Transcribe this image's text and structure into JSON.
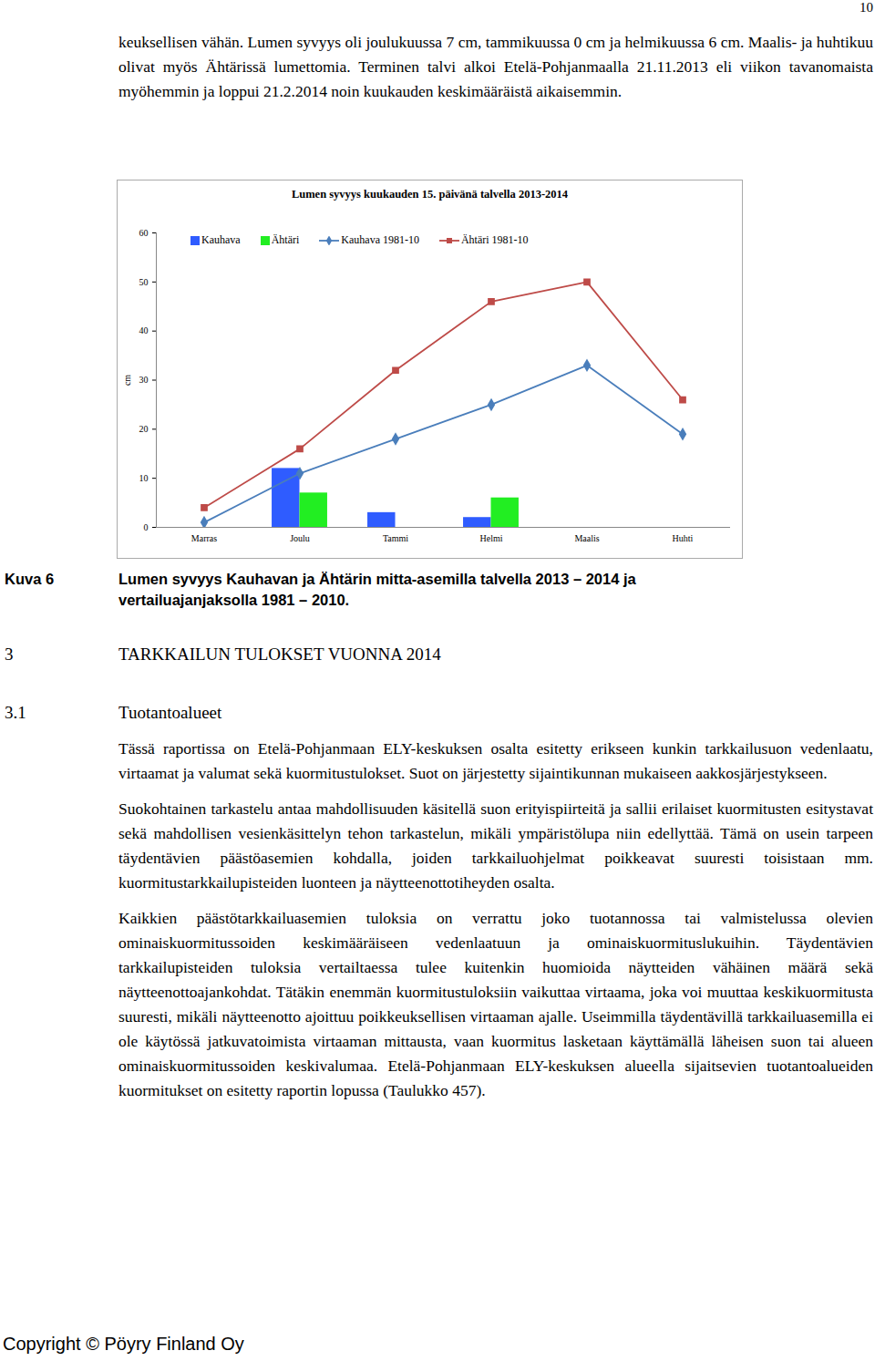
{
  "page_number": "10",
  "top_paragraph": "keuksellisen vähän. Lumen syvyys oli joulukuussa 7 cm, tammikuussa 0 cm ja helmikuussa 6 cm. Maalis- ja huhtikuu olivat myös Ähtärissä lumettomia. Terminen talvi alkoi Etelä-Pohjanmaalla 21.11.2013 eli viikon tavanomaista myöhemmin ja loppui 21.2.2014 noin kuukauden keskimääräistä aikaisemmin.",
  "chart_data": {
    "type": "bar",
    "title": "Lumen syvyys kuukauden 15. päivänä talvella 2013-2014",
    "y_label": "cm",
    "categories": [
      "Marras",
      "Joulu",
      "Tammi",
      "Helmi",
      "Maalis",
      "Huhti"
    ],
    "series": [
      {
        "name": "Kauhava",
        "type": "bar",
        "color": "#2f5cff",
        "values": [
          null,
          12,
          3,
          2,
          null,
          null
        ]
      },
      {
        "name": "Ähtäri",
        "type": "bar",
        "color": "#22ee22",
        "values": [
          null,
          7,
          0,
          6,
          0,
          0
        ]
      },
      {
        "name": "Kauhava 1981-10",
        "type": "line",
        "marker": "diamond",
        "color": "#4a7ebb",
        "values": [
          1,
          11,
          18,
          25,
          33,
          19
        ]
      },
      {
        "name": "Ähtäri 1981-10",
        "type": "line",
        "marker": "square",
        "color": "#be4b48",
        "values": [
          4,
          16,
          32,
          46,
          50,
          26
        ]
      }
    ],
    "ylim": [
      0,
      60
    ],
    "yticks": [
      0,
      10,
      20,
      30,
      40,
      50,
      60
    ],
    "grid": false,
    "legend": "top"
  },
  "caption": {
    "label": "Kuva 6",
    "text": "Lumen syvyys Kauhavan ja Ähtärin mitta-asemilla talvella 2013 – 2014 ja vertailuajanjaksolla 1981 – 2010."
  },
  "heading": {
    "number": "3",
    "text": "TARKKAILUN TULOKSET VUONNA 2014"
  },
  "subheading": {
    "number": "3.1",
    "text": "Tuotantoalueet"
  },
  "paragraphs": [
    "Tässä raportissa on Etelä-Pohjanmaan ELY-keskuksen osalta esitetty erikseen kunkin tarkkailusuon vedenlaatu, virtaamat ja valumat sekä kuormitustulokset. Suot on järjestetty sijaintikunnan mukaiseen aakkosjärjestykseen.",
    "Suokohtainen tarkastelu antaa mahdollisuuden käsitellä suon erityispiirteitä ja sallii erilaiset kuormitusten esitystavat sekä mahdollisen vesienkäsittelyn tehon tarkastelun, mikäli ympäristölupa niin edellyttää. Tämä on usein tarpeen täydentävien päästöasemien kohdalla, joiden tarkkailuohjelmat poikkeavat suuresti toisistaan mm. kuormitustarkkailupisteiden luonteen ja näytteenottotiheyden osalta.",
    "Kaikkien päästötarkkailuasemien tuloksia on verrattu joko tuotannossa tai valmistelussa olevien ominaiskuormitussoiden keskimääräiseen vedenlaatuun ja ominaiskuormituslukuihin. Täydentävien tarkkailupisteiden tuloksia vertailtaessa tulee kuitenkin huomioida näytteiden vähäinen määrä sekä näytteenottoajankohdat. Tätäkin enemmän kuormitustuloksiin vaikuttaa virtaama, joka voi muuttaa keskikuormitusta suuresti, mikäli näytteenotto ajoittuu poikkeuksellisen virtaaman ajalle. Useimmilla täydentävillä tarkkailuasemilla ei ole käytössä jatkuvatoimista virtaaman mittausta, vaan kuormitus lasketaan käyttämällä läheisen suon tai alueen ominaiskuormitussoiden keskivalumaa. Etelä-Pohjanmaan ELY-keskuksen alueella sijaitsevien tuotantoalueiden kuormitukset on esitetty raportin lopussa (Taulukko 457)."
  ],
  "footer": "Copyright © Pöyry Finland Oy"
}
